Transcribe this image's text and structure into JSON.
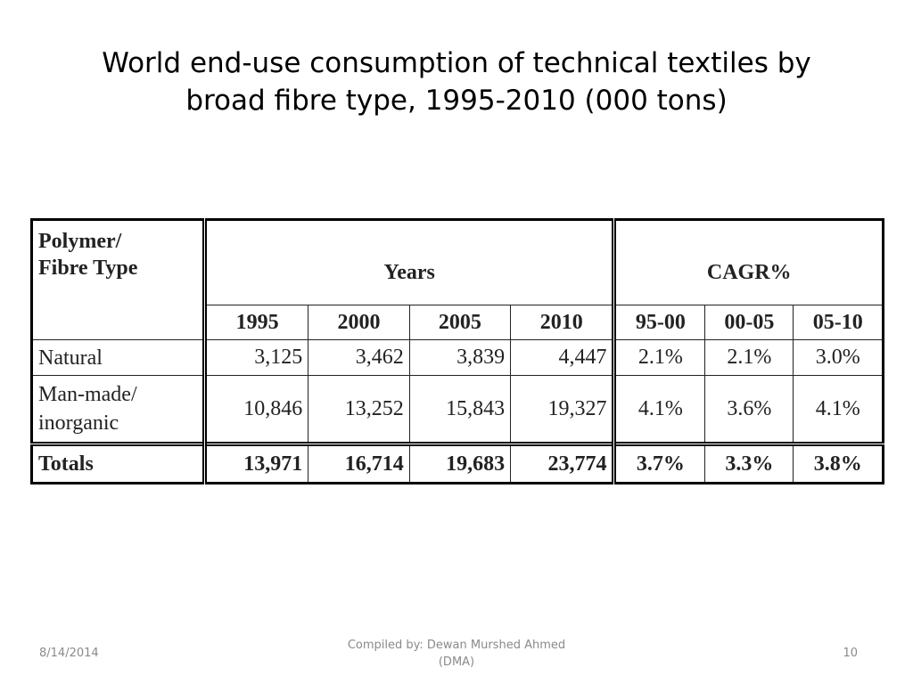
{
  "title": {
    "line1": "World end-use consumption of technical textiles by",
    "line2": "broad fibre type, 1995-2010 (000 tons)"
  },
  "table": {
    "type_header_line1": "Polymer/",
    "type_header_line2": "Fibre Type",
    "years_header": "Years",
    "cagr_header": "CAGR%",
    "year_columns": [
      "1995",
      "2000",
      "2005",
      "2010"
    ],
    "cagr_columns": [
      "95-00",
      "00-05",
      "05-10"
    ],
    "rows": [
      {
        "label_line1": "Natural",
        "label_line2": "",
        "values": [
          "3,125",
          "3,462",
          "3,839",
          "4,447"
        ],
        "cagr": [
          "2.1%",
          "2.1%",
          "3.0%"
        ]
      },
      {
        "label_line1": "Man-made/",
        "label_line2": "inorganic",
        "values": [
          "10,846",
          "13,252",
          "15,843",
          "19,327"
        ],
        "cagr": [
          "4.1%",
          "3.6%",
          "4.1%"
        ]
      },
      {
        "label_line1": "Totals",
        "label_line2": "",
        "values": [
          "13,971",
          "16,714",
          "19,683",
          "23,774"
        ],
        "cagr": [
          "3.7%",
          "3.3%",
          "3.8%"
        ]
      }
    ]
  },
  "footer": {
    "date": "8/14/2014",
    "compiled_line1": "Compiled by: Dewan Murshed Ahmed",
    "compiled_line2": "(DMA)",
    "page_number": "10"
  }
}
